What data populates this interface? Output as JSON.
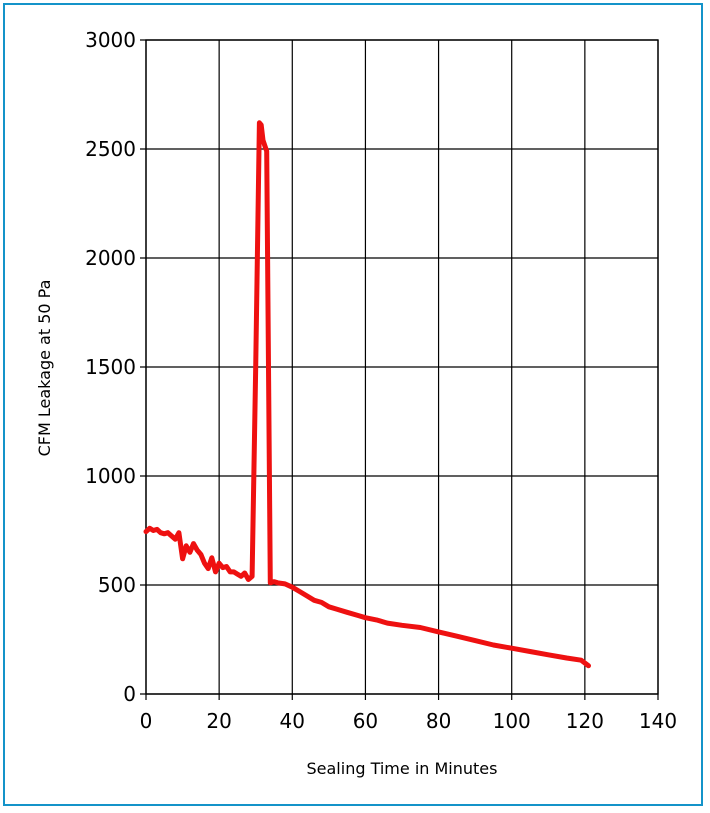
{
  "colors": {
    "frame": "#1493c9",
    "series": "#ee1111",
    "grid": "#000000"
  },
  "chart_data": {
    "type": "line",
    "title": "",
    "xlabel": "Sealing Time in Minutes",
    "ylabel": "CFM Leakage at 50 Pa",
    "xlim": [
      0,
      140
    ],
    "ylim": [
      0,
      3000
    ],
    "grid": true,
    "xticks": [
      "0",
      "20",
      "40",
      "60",
      "80",
      "100",
      "120",
      "140"
    ],
    "yticks": [
      "0",
      "500",
      "1000",
      "1500",
      "2000",
      "2500",
      "3000"
    ],
    "series": [
      {
        "x": [
          0,
          1,
          2,
          3,
          4,
          5,
          6,
          7,
          8,
          9,
          10,
          11,
          12,
          13,
          14,
          15,
          16,
          17,
          18,
          19,
          20,
          21,
          22,
          23,
          24,
          25,
          26,
          27,
          28,
          29,
          30,
          31,
          31.5,
          32,
          33,
          34,
          35,
          36,
          38,
          40,
          42,
          44,
          46,
          48,
          50,
          52,
          55,
          58,
          60,
          63,
          66,
          70,
          75,
          80,
          85,
          90,
          95,
          100,
          105,
          110,
          115,
          119,
          121
        ],
        "y": [
          745,
          760,
          750,
          755,
          740,
          735,
          740,
          725,
          710,
          740,
          620,
          680,
          650,
          690,
          660,
          640,
          600,
          575,
          625,
          560,
          600,
          580,
          585,
          560,
          560,
          550,
          540,
          555,
          525,
          540,
          1500,
          2620,
          2610,
          2540,
          2490,
          510,
          515,
          510,
          505,
          490,
          470,
          450,
          430,
          420,
          400,
          390,
          375,
          360,
          350,
          340,
          325,
          315,
          305,
          285,
          265,
          245,
          225,
          210,
          195,
          180,
          165,
          155,
          130
        ]
      }
    ]
  }
}
